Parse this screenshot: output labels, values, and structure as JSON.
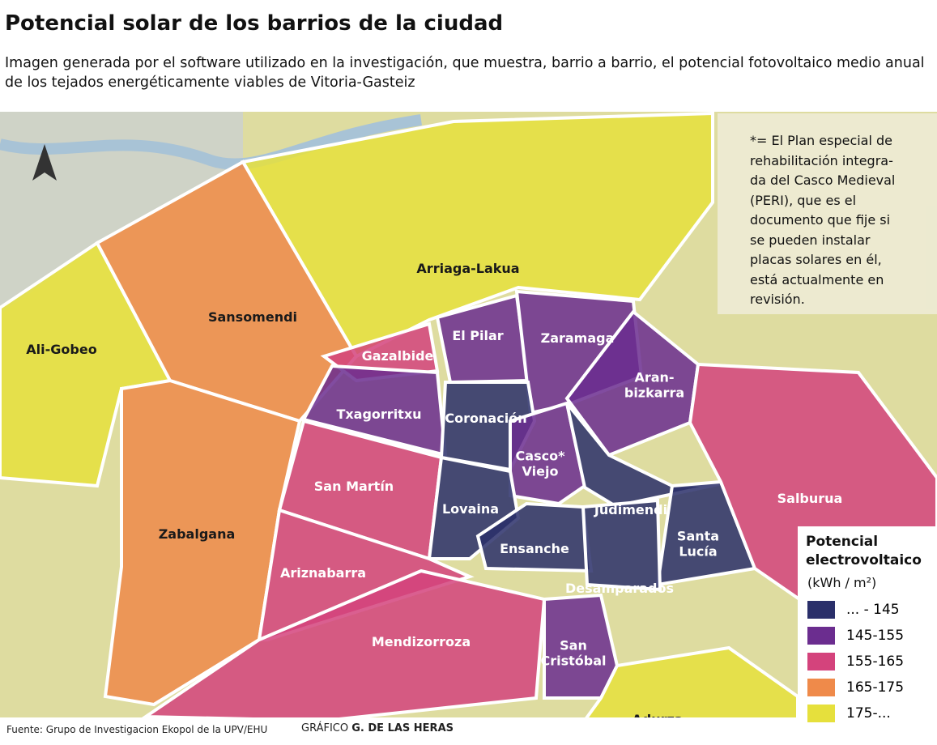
{
  "header": {
    "title": "Potencial solar de los barrios de la ciudad",
    "subtitle": "Imagen generada por el software utilizado en la investigación, que muestra, barrio a barrio, el potencial fotovoltaico medio anual de los tejados energéticamente viables de Vitoria-Gasteiz"
  },
  "note": [
    "*= El Plan especial de",
    "rehabilitación integra-",
    "da del Casco Medieval",
    "(PERI), que es el",
    "documento que fije si",
    "se pueden instalar",
    "placas solares en él,",
    "está actualmente en",
    "revisión."
  ],
  "legend": {
    "title": [
      "Potencial",
      "electrovoltaico"
    ],
    "unit": "(kWh / m²)",
    "items": [
      {
        "label": "... - 145",
        "color": "#2a2f6a"
      },
      {
        "label": "145-155",
        "color": "#6b2d8f"
      },
      {
        "label": "155-165",
        "color": "#d4437c"
      },
      {
        "label": "165-175",
        "color": "#ef8a4a"
      },
      {
        "label": "175-...",
        "color": "#e6e03c"
      }
    ]
  },
  "neighborhoods": [
    {
      "label": [
        "Arriaga-Lakua"
      ],
      "class": 4
    },
    {
      "label": [
        "Ali-Gobeo"
      ],
      "class": 4
    },
    {
      "label": [
        "Sansomendi"
      ],
      "class": 3
    },
    {
      "label": [
        "Zabalgana"
      ],
      "class": 3
    },
    {
      "label": [
        "Gazalbide"
      ],
      "class": 2
    },
    {
      "label": [
        "El Pilar"
      ],
      "class": 1
    },
    {
      "label": [
        "Zaramaga"
      ],
      "class": 1
    },
    {
      "label": [
        "Aran-",
        "bizkarra"
      ],
      "class": 1
    },
    {
      "label": [
        "Txagorritxu"
      ],
      "class": 1
    },
    {
      "label": [
        "Coronación"
      ],
      "class": 0
    },
    {
      "label": [
        "Casco*",
        "Viejo"
      ],
      "class": 1
    },
    {
      "label": [
        "San Martín"
      ],
      "class": 2
    },
    {
      "label": [
        "Lovaina"
      ],
      "class": 0
    },
    {
      "label": [
        "Ensanche"
      ],
      "class": 0
    },
    {
      "label": [
        "Judimendi"
      ],
      "class": 0
    },
    {
      "label": [
        "Santa",
        "Lucía"
      ],
      "class": 0
    },
    {
      "label": [
        "Desamparados"
      ],
      "class": 0
    },
    {
      "label": [
        "Salburua"
      ],
      "class": 2
    },
    {
      "label": [
        "Ariznabarra"
      ],
      "class": 2
    },
    {
      "label": [
        "Mendizorroza"
      ],
      "class": 2
    },
    {
      "label": [
        "San",
        "Cristóbal"
      ],
      "class": 1
    },
    {
      "label": [
        "Adurza"
      ],
      "class": 4
    }
  ],
  "footer": {
    "source": "Fuente: Grupo de Investigacion Ekopol de la UPV/EHU",
    "credit": {
      "label": "GRÁFICO",
      "name": "G. DE LAS HERAS"
    }
  }
}
